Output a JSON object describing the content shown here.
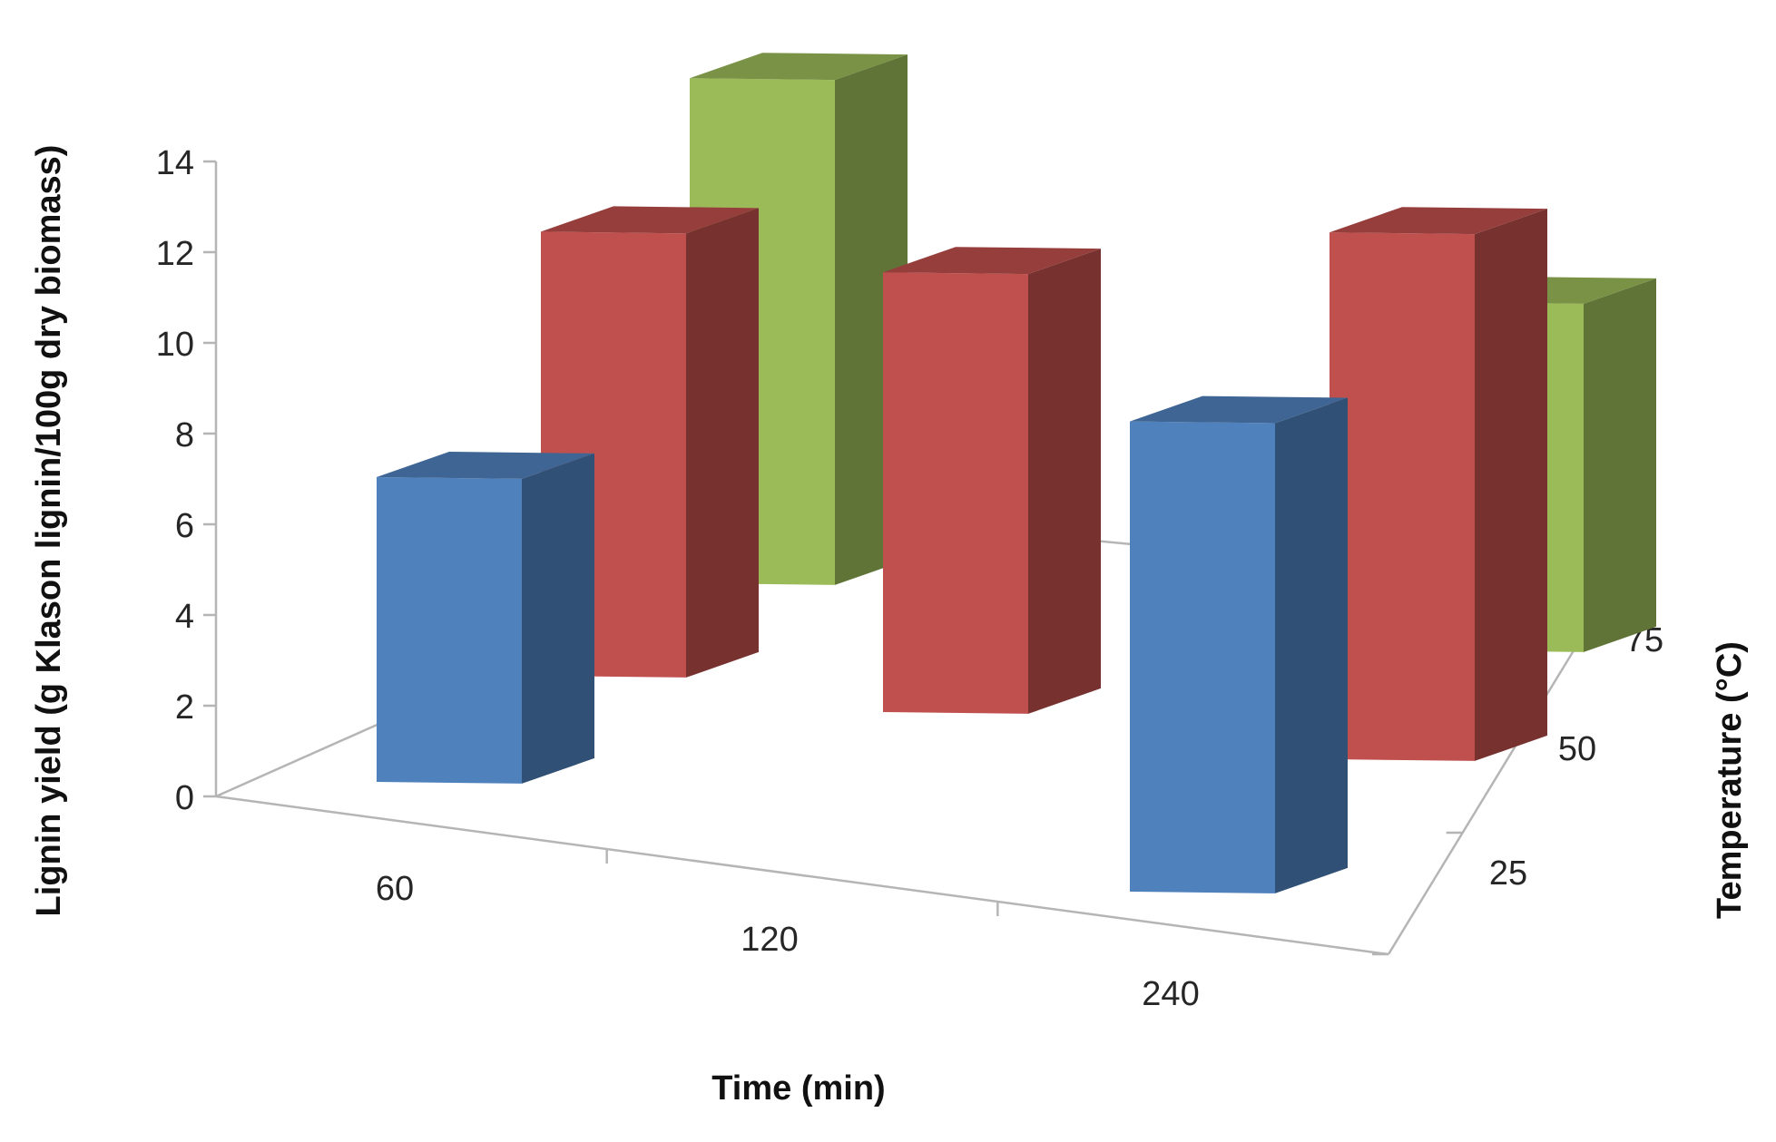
{
  "chart_data": {
    "type": "bar",
    "subtype": "3d-column",
    "title": "",
    "categories": [
      "60",
      "120",
      "240"
    ],
    "x_label": "Time (min)",
    "z_label": "Temperature (°C)",
    "z_categories": [
      "25",
      "50",
      "75"
    ],
    "y_label": "Lignin yield (g Klason lignin/100g dry biomass)",
    "y_ticks": [
      "0",
      "2",
      "4",
      "6",
      "8",
      "10",
      "12",
      "14"
    ],
    "y_range": [
      0,
      14
    ],
    "gridlines": false,
    "legend": "none",
    "series": [
      {
        "temperature": "25",
        "color": "#4f81bd",
        "values": [
          7.0,
          null,
          10.8
        ]
      },
      {
        "temperature": "50",
        "color": "#c0504d",
        "values": [
          10.2,
          10.1,
          12.1
        ]
      },
      {
        "temperature": "75",
        "color": "#9bbb59",
        "values": [
          11.6,
          null,
          8.0
        ]
      }
    ]
  }
}
